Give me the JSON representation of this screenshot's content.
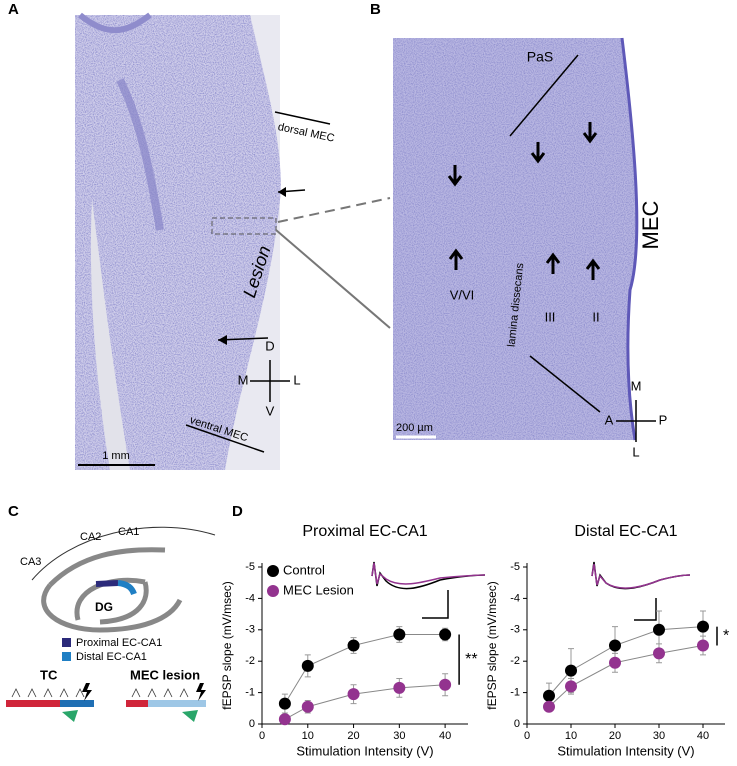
{
  "panel_a": {
    "label": "A",
    "dorsal": "dorsal MEC",
    "lesion": "Lesion",
    "ventral": "ventral MEC",
    "scale": "1 mm",
    "compass": [
      "D",
      "M",
      "L",
      "V"
    ]
  },
  "panel_b": {
    "label": "B",
    "pas": "PaS",
    "mec": "MEC",
    "layer_56": "V/VI",
    "layer_3": "III",
    "layer_2": "II",
    "lamina": "lamina dissecans",
    "scale": "200 µm",
    "compass": [
      "M",
      "A",
      "P",
      "L"
    ]
  },
  "panel_c": {
    "label": "C",
    "ca2": "CA2",
    "ca1": "CA1",
    "ca3": "CA3",
    "dg": "DG",
    "proximal": "Proximal EC-CA1",
    "distal": "Distal EC-CA1",
    "tc": "TC",
    "mec_lesion": "MEC lesion"
  },
  "panel_d": {
    "label": "D"
  },
  "chart_data": [
    {
      "type": "line",
      "title": "Proximal EC-CA1",
      "xlabel": "Stimulation Intensity (V)",
      "ylabel": "fEPSP slope (mV/msec)",
      "x": [
        5,
        10,
        20,
        30,
        40
      ],
      "series": [
        {
          "name": "Control",
          "color": "#000000",
          "values": [
            -0.65,
            -1.85,
            -2.5,
            -2.85,
            -2.85
          ],
          "errors": [
            0.3,
            0.35,
            0.25,
            0.25,
            0.2
          ]
        },
        {
          "name": "MEC Lesion",
          "color": "#93338f",
          "values": [
            -0.15,
            -0.55,
            -0.95,
            -1.15,
            -1.25
          ],
          "errors": [
            0.15,
            0.2,
            0.3,
            0.3,
            0.35
          ]
        }
      ],
      "xlim": [
        0,
        45
      ],
      "ylim": [
        0,
        -5
      ],
      "xticks": [
        0,
        10,
        20,
        30,
        40
      ],
      "yticks": [
        0,
        -1,
        -2,
        -3,
        -4,
        -5
      ],
      "legend": "upper left",
      "annotation": "**"
    },
    {
      "type": "line",
      "title": "Distal EC-CA1",
      "xlabel": "Stimulation Intensity (V)",
      "ylabel": "fEPSP slope (mV/msec)",
      "x": [
        5,
        10,
        20,
        30,
        40
      ],
      "series": [
        {
          "color": "#000000",
          "values": [
            -0.9,
            -1.7,
            -2.5,
            -3.0,
            -3.1
          ],
          "errors": [
            0.4,
            0.7,
            0.6,
            0.6,
            0.5
          ]
        },
        {
          "color": "#93338f",
          "values": [
            -0.55,
            -1.2,
            -1.95,
            -2.25,
            -2.5
          ],
          "errors": [
            0.15,
            0.25,
            0.3,
            0.3,
            0.3
          ]
        }
      ],
      "xlim": [
        0,
        45
      ],
      "ylim": [
        0,
        -5
      ],
      "xticks": [
        0,
        10,
        20,
        30,
        40
      ],
      "yticks": [
        0,
        -1,
        -2,
        -3,
        -4,
        -5
      ],
      "annotation": "*"
    }
  ]
}
